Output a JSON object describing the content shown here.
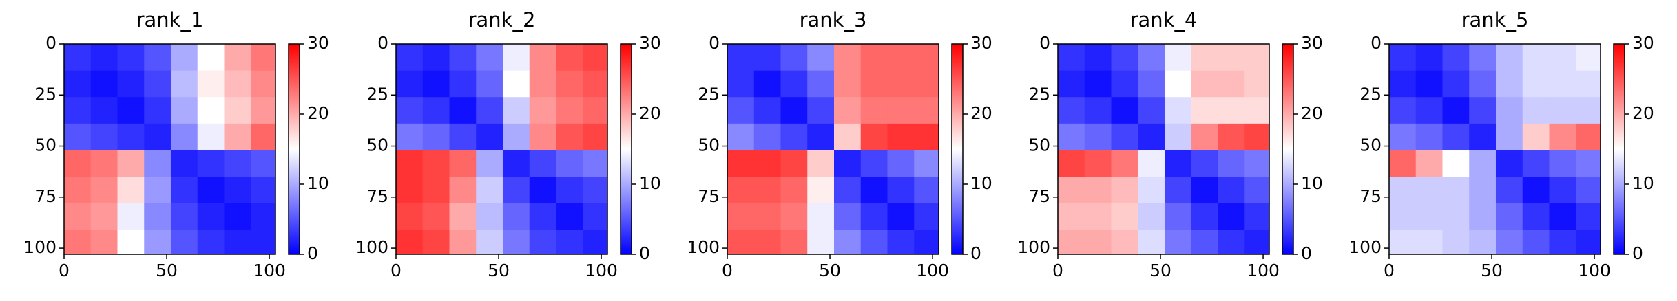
{
  "chart_data": [
    {
      "type": "heatmap",
      "title": "rank_1",
      "cmap": "bwr",
      "clim": [
        0,
        30
      ],
      "cticks": [
        0,
        10,
        20,
        30
      ],
      "xlim": [
        0,
        103
      ],
      "ylim": [
        103,
        0
      ],
      "xticks": [
        0,
        50,
        100
      ],
      "yticks": [
        0,
        25,
        50,
        75,
        100
      ],
      "xbins": [
        0,
        13,
        26,
        39,
        52,
        65,
        78,
        91,
        103
      ],
      "ybins": [
        0,
        13,
        26,
        39,
        52,
        65,
        78,
        91,
        103
      ],
      "values": [
        [
          3,
          2,
          3,
          5,
          10,
          15,
          20,
          23
        ],
        [
          2,
          1,
          2,
          4,
          11,
          16,
          19,
          22
        ],
        [
          3,
          2,
          1,
          3,
          10,
          15,
          18,
          21
        ],
        [
          5,
          4,
          3,
          2,
          8,
          14,
          20,
          24
        ],
        [
          24,
          23,
          20,
          8,
          2,
          3,
          4,
          5
        ],
        [
          23,
          22,
          17,
          9,
          3,
          1,
          2,
          3
        ],
        [
          22,
          21,
          14,
          8,
          4,
          2,
          1,
          2
        ],
        [
          23,
          22,
          15,
          9,
          5,
          3,
          2,
          2
        ]
      ]
    },
    {
      "type": "heatmap",
      "title": "rank_2",
      "cmap": "bwr",
      "clim": [
        0,
        30
      ],
      "cticks": [
        0,
        10,
        20,
        30
      ],
      "xlim": [
        0,
        103
      ],
      "ylim": [
        103,
        0
      ],
      "xticks": [
        0,
        50,
        100
      ],
      "yticks": [
        0,
        25,
        50,
        75,
        100
      ],
      "xbins": [
        0,
        13,
        26,
        39,
        52,
        65,
        78,
        91,
        103
      ],
      "ybins": [
        0,
        13,
        26,
        39,
        52,
        65,
        78,
        91,
        103
      ],
      "values": [
        [
          3,
          2,
          4,
          7,
          14,
          22,
          25,
          26
        ],
        [
          2,
          1,
          3,
          6,
          15,
          22,
          24,
          25
        ],
        [
          4,
          3,
          1,
          4,
          12,
          21,
          23,
          24
        ],
        [
          7,
          6,
          4,
          2,
          10,
          22,
          25,
          26
        ],
        [
          27,
          26,
          24,
          10,
          2,
          4,
          6,
          7
        ],
        [
          27,
          26,
          22,
          12,
          4,
          1,
          3,
          4
        ],
        [
          26,
          25,
          20,
          11,
          6,
          3,
          1,
          3
        ],
        [
          27,
          26,
          21,
          12,
          7,
          4,
          3,
          2
        ]
      ]
    },
    {
      "type": "heatmap",
      "title": "rank_3",
      "cmap": "bwr",
      "clim": [
        0,
        30
      ],
      "cticks": [
        0,
        10,
        20,
        30
      ],
      "xlim": [
        0,
        103
      ],
      "ylim": [
        103,
        0
      ],
      "xticks": [
        0,
        50,
        100
      ],
      "yticks": [
        0,
        25,
        50,
        75,
        100
      ],
      "xbins": [
        0,
        13,
        26,
        39,
        52,
        65,
        78,
        91,
        103
      ],
      "ybins": [
        0,
        13,
        26,
        39,
        52,
        65,
        78,
        91,
        103
      ],
      "values": [
        [
          3,
          3,
          5,
          8,
          22,
          24,
          24,
          24
        ],
        [
          3,
          1,
          3,
          6,
          22,
          24,
          24,
          24
        ],
        [
          5,
          3,
          1,
          4,
          21,
          23,
          23,
          23
        ],
        [
          8,
          6,
          4,
          2,
          18,
          26,
          27,
          27
        ],
        [
          27,
          27,
          26,
          18,
          2,
          4,
          6,
          8
        ],
        [
          25,
          25,
          24,
          16,
          4,
          1,
          3,
          5
        ],
        [
          24,
          24,
          23,
          14,
          6,
          3,
          1,
          3
        ],
        [
          25,
          25,
          24,
          14,
          8,
          5,
          3,
          2
        ]
      ]
    },
    {
      "type": "heatmap",
      "title": "rank_4",
      "cmap": "bwr",
      "clim": [
        0,
        30
      ],
      "cticks": [
        0,
        10,
        20,
        30
      ],
      "xlim": [
        0,
        103
      ],
      "ylim": [
        103,
        0
      ],
      "xticks": [
        0,
        50,
        100
      ],
      "yticks": [
        0,
        25,
        50,
        75,
        100
      ],
      "xbins": [
        0,
        13,
        26,
        39,
        52,
        65,
        78,
        91,
        103
      ],
      "ybins": [
        0,
        13,
        26,
        39,
        52,
        65,
        78,
        91,
        103
      ],
      "values": [
        [
          3,
          2,
          4,
          7,
          14,
          18,
          18,
          18
        ],
        [
          2,
          1,
          3,
          6,
          15,
          19,
          19,
          18
        ],
        [
          4,
          3,
          1,
          4,
          13,
          17,
          17,
          17
        ],
        [
          7,
          6,
          4,
          2,
          12,
          22,
          25,
          26
        ],
        [
          26,
          25,
          23,
          14,
          2,
          4,
          6,
          7
        ],
        [
          20,
          20,
          19,
          13,
          4,
          1,
          3,
          5
        ],
        [
          19,
          19,
          18,
          12,
          6,
          3,
          1,
          3
        ],
        [
          20,
          20,
          19,
          13,
          7,
          5,
          3,
          2
        ]
      ]
    },
    {
      "type": "heatmap",
      "title": "rank_5",
      "cmap": "bwr",
      "clim": [
        0,
        30
      ],
      "cticks": [
        0,
        10,
        20,
        30
      ],
      "xlim": [
        0,
        103
      ],
      "ylim": [
        103,
        0
      ],
      "xticks": [
        0,
        50,
        100
      ],
      "yticks": [
        0,
        25,
        50,
        75,
        100
      ],
      "xbins": [
        0,
        13,
        26,
        39,
        52,
        65,
        78,
        91,
        103
      ],
      "ybins": [
        0,
        13,
        26,
        39,
        52,
        65,
        78,
        91,
        103
      ],
      "values": [
        [
          3,
          2,
          4,
          7,
          11,
          13,
          13,
          14
        ],
        [
          2,
          1,
          3,
          6,
          11,
          13,
          13,
          13
        ],
        [
          4,
          3,
          1,
          4,
          10,
          12,
          12,
          12
        ],
        [
          7,
          6,
          4,
          2,
          10,
          18,
          22,
          24
        ],
        [
          24,
          20,
          15,
          10,
          2,
          4,
          6,
          7
        ],
        [
          12,
          12,
          12,
          10,
          4,
          1,
          3,
          5
        ],
        [
          12,
          12,
          12,
          10,
          6,
          3,
          1,
          3
        ],
        [
          13,
          13,
          12,
          11,
          7,
          5,
          3,
          2
        ]
      ]
    }
  ]
}
